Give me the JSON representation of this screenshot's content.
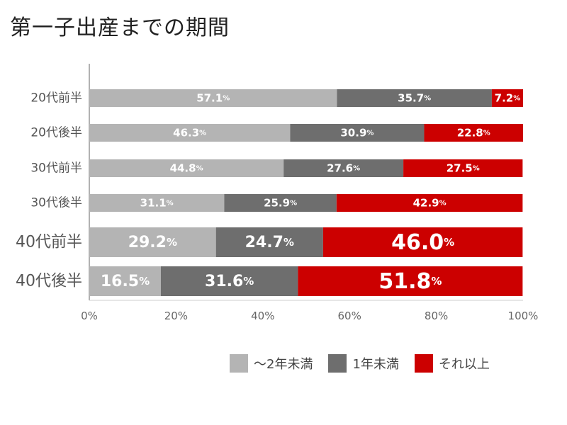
{
  "chart_data": {
    "type": "bar",
    "orientation": "horizontal",
    "stacked": true,
    "title": "第一子出産までの期間",
    "categories": [
      "20代前半",
      "20代後半",
      "30代前半",
      "30代後半",
      "40代前半",
      "40代後半"
    ],
    "series": [
      {
        "name": "〜2年未満",
        "color": "#b4b4b4",
        "values": [
          57.1,
          46.3,
          44.8,
          31.1,
          29.2,
          16.5
        ]
      },
      {
        "name": "1年未満",
        "color": "#6e6e6e",
        "values": [
          35.7,
          30.9,
          27.6,
          25.9,
          24.7,
          31.6
        ]
      },
      {
        "name": "それ以上",
        "color": "#cc0000",
        "values": [
          7.2,
          22.8,
          27.5,
          42.9,
          46.0,
          51.8
        ]
      }
    ],
    "xticks": [
      "0%",
      "20%",
      "40%",
      "60%",
      "80%",
      "100%"
    ],
    "xlim": [
      0,
      100
    ],
    "value_suffix": "%",
    "grid": false,
    "legend_position": "bottom"
  }
}
